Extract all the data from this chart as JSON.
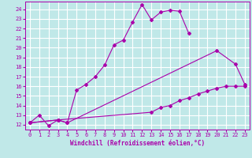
{
  "xlabel": "Windchill (Refroidissement éolien,°C)",
  "bg_color": "#c0e8e8",
  "grid_color": "#ffffff",
  "line_color": "#aa00aa",
  "xlim": [
    -0.5,
    23.5
  ],
  "ylim": [
    11.5,
    24.8
  ],
  "xticks": [
    0,
    1,
    2,
    3,
    4,
    5,
    6,
    7,
    8,
    9,
    10,
    11,
    12,
    13,
    14,
    15,
    16,
    17,
    18,
    19,
    20,
    21,
    22,
    23
  ],
  "yticks": [
    12,
    13,
    14,
    15,
    16,
    17,
    18,
    19,
    20,
    21,
    22,
    23,
    24
  ],
  "line1_x": [
    0,
    1,
    2,
    3,
    4,
    5,
    6,
    7,
    8,
    9,
    10,
    11,
    12,
    13,
    14,
    15,
    16,
    17
  ],
  "line1_y": [
    12.2,
    13.0,
    11.9,
    12.5,
    12.2,
    15.6,
    16.2,
    17.0,
    18.2,
    20.3,
    20.8,
    22.7,
    24.5,
    22.9,
    23.7,
    23.9,
    23.8,
    21.5
  ],
  "line2_x": [
    0,
    3,
    4,
    20,
    22,
    23
  ],
  "line2_y": [
    12.2,
    12.5,
    12.2,
    19.7,
    18.3,
    16.2
  ],
  "line3_x": [
    0,
    3,
    13,
    14,
    15,
    16,
    17,
    18,
    19,
    20,
    21,
    22,
    23
  ],
  "line3_y": [
    12.2,
    12.5,
    13.3,
    13.8,
    14.0,
    14.5,
    14.8,
    15.2,
    15.5,
    15.8,
    16.0,
    16.0,
    16.0
  ]
}
